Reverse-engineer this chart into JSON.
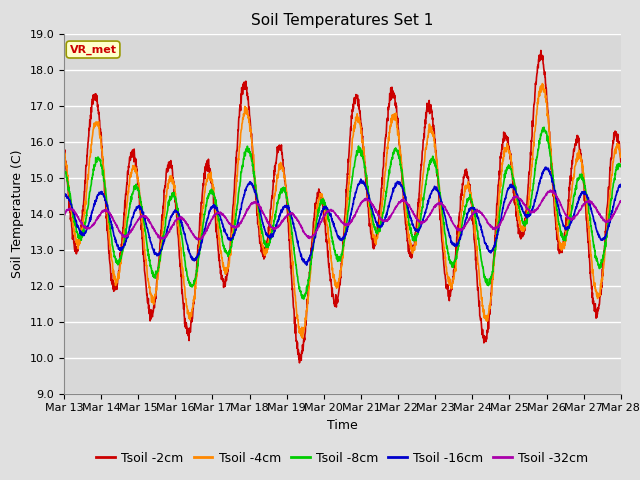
{
  "title": "Soil Temperatures Set 1",
  "xlabel": "Time",
  "ylabel": "Soil Temperature (C)",
  "ylim": [
    9.0,
    19.0
  ],
  "yticks": [
    9.0,
    10.0,
    11.0,
    12.0,
    13.0,
    14.0,
    15.0,
    16.0,
    17.0,
    18.0,
    19.0
  ],
  "background_color": "#e0e0e0",
  "plot_bg_color": "#d8d8d8",
  "grid_color": "#ffffff",
  "legend_label": "VR_met",
  "colors": {
    "Tsoil -2cm": "#cc0000",
    "Tsoil -4cm": "#ff8800",
    "Tsoil -8cm": "#00cc00",
    "Tsoil -16cm": "#0000cc",
    "Tsoil -32cm": "#aa00aa"
  },
  "n_days": 15,
  "x_tick_labels": [
    "Mar 13",
    "Mar 14",
    "Mar 15",
    "Mar 16",
    "Mar 17",
    "Mar 18",
    "Mar 19",
    "Mar 20",
    "Mar 21",
    "Mar 22",
    "Mar 23",
    "Mar 24",
    "Mar 25",
    "Mar 26",
    "Mar 27",
    "Mar 28"
  ],
  "title_fontsize": 11,
  "axis_label_fontsize": 9,
  "tick_fontsize": 8,
  "legend_fontsize": 9,
  "line_width": 1.2,
  "figsize": [
    6.4,
    4.8
  ],
  "dpi": 100
}
